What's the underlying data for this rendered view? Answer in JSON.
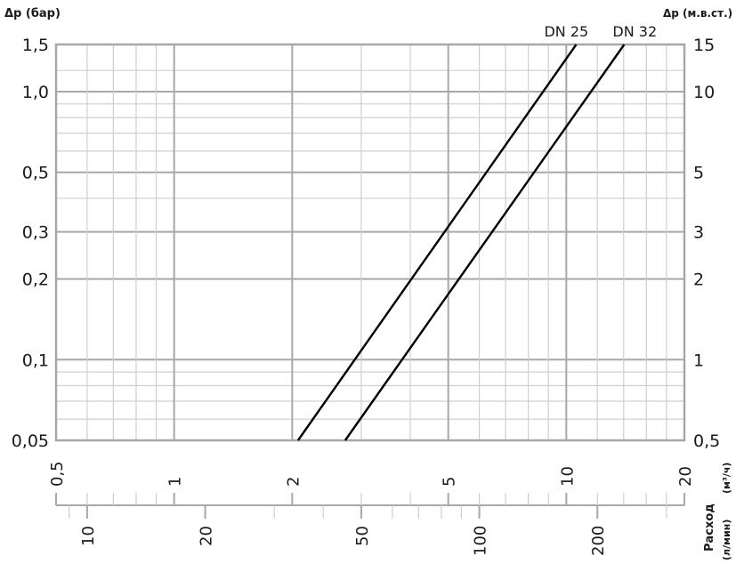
{
  "chart_data": {
    "type": "line",
    "title": "",
    "ylabel_left": "Δp (бар)",
    "ylabel_right": "Δp (м.в.ст.)",
    "xlabel": "Расход",
    "xunit_top": "(м³/ч)",
    "xunit_bottom": "(л/мин)",
    "x_scale": "log",
    "y_scale": "log",
    "xlim": [
      0.5,
      20
    ],
    "ylim": [
      0.05,
      1.5
    ],
    "grid": true,
    "y_ticks_left": [
      {
        "value": 0.05,
        "label": "0,05"
      },
      {
        "value": 0.1,
        "label": "0,1"
      },
      {
        "value": 0.2,
        "label": "0,2"
      },
      {
        "value": 0.3,
        "label": "0,3"
      },
      {
        "value": 0.5,
        "label": "0,5"
      },
      {
        "value": 1.0,
        "label": "1,0"
      },
      {
        "value": 1.5,
        "label": "1,5"
      }
    ],
    "y_ticks_right": [
      {
        "value": 0.05,
        "label": "0,5"
      },
      {
        "value": 0.1,
        "label": "1"
      },
      {
        "value": 0.2,
        "label": "2"
      },
      {
        "value": 0.3,
        "label": "3"
      },
      {
        "value": 0.5,
        "label": "5"
      },
      {
        "value": 1.0,
        "label": "10"
      },
      {
        "value": 1.5,
        "label": "15"
      }
    ],
    "x_ticks_m3h": [
      {
        "value": 0.5,
        "label": "0,5"
      },
      {
        "value": 1,
        "label": "1"
      },
      {
        "value": 2,
        "label": "2"
      },
      {
        "value": 5,
        "label": "5"
      },
      {
        "value": 10,
        "label": "10"
      },
      {
        "value": 20,
        "label": "20"
      }
    ],
    "x_ticks_lmin": [
      {
        "value": 10,
        "label": "10"
      },
      {
        "value": 20,
        "label": "20"
      },
      {
        "value": 50,
        "label": "50"
      },
      {
        "value": 100,
        "label": "100"
      },
      {
        "value": 200,
        "label": "200"
      }
    ],
    "series": [
      {
        "name": "DN 25",
        "points": [
          [
            2.07,
            0.05
          ],
          [
            10.6,
            1.5
          ]
        ]
      },
      {
        "name": "DN 32",
        "points": [
          [
            2.73,
            0.05
          ],
          [
            14.05,
            1.5
          ]
        ]
      }
    ],
    "colors": {
      "grid_major": "#a8a8a8",
      "grid_minor": "#cfcfcf",
      "line": "#000000",
      "text": "#1a1a1a"
    }
  }
}
